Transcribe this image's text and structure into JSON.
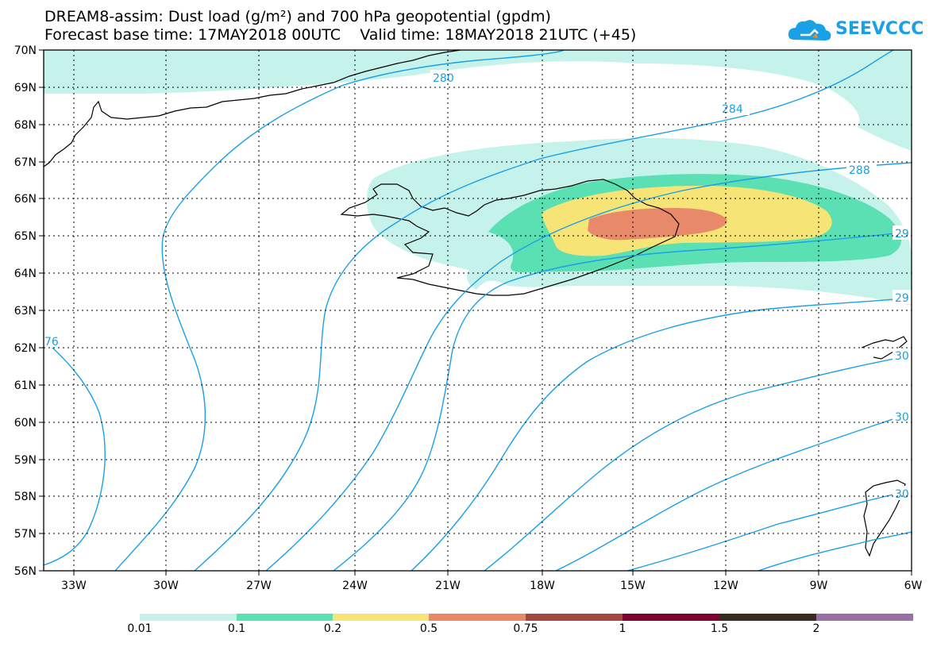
{
  "title_line1": "DREAM8-assim: Dust load (g/m²) and 700 hPa geopotential (gpdm)",
  "title_line2": "Forecast base time: 17MAY2018 00UTC    Valid time: 18MAY2018 21UTC (+45)",
  "logo_text": "SEEVCCC",
  "lat_labels": [
    "70N",
    "69N",
    "68N",
    "67N",
    "66N",
    "65N",
    "64N",
    "63N",
    "62N",
    "61N",
    "60N",
    "59N",
    "58N",
    "57N",
    "56N"
  ],
  "lon_labels": [
    "33W",
    "30W",
    "27W",
    "24W",
    "21W",
    "18W",
    "15W",
    "12W",
    "9W",
    "6W"
  ],
  "contour_labels": [
    "280",
    "284",
    "288",
    "29",
    "29",
    "30",
    "30",
    "30",
    "76"
  ],
  "colorbar": {
    "labels": [
      "0.01",
      "0.1",
      "0.2",
      "0.5",
      "0.75",
      "1",
      "1.5",
      "2"
    ],
    "colors": [
      "#c5f2ea",
      "#5be0b3",
      "#f7e477",
      "#e8896a",
      "#a3473f",
      "#800030",
      "#3a2a1e",
      "#9a70a4"
    ]
  },
  "colors": {
    "contour": "#1aa0e6",
    "dust_001": "#c5f2ea",
    "dust_01": "#5be0b3",
    "dust_02": "#f7e477",
    "dust_05": "#e8896a"
  }
}
